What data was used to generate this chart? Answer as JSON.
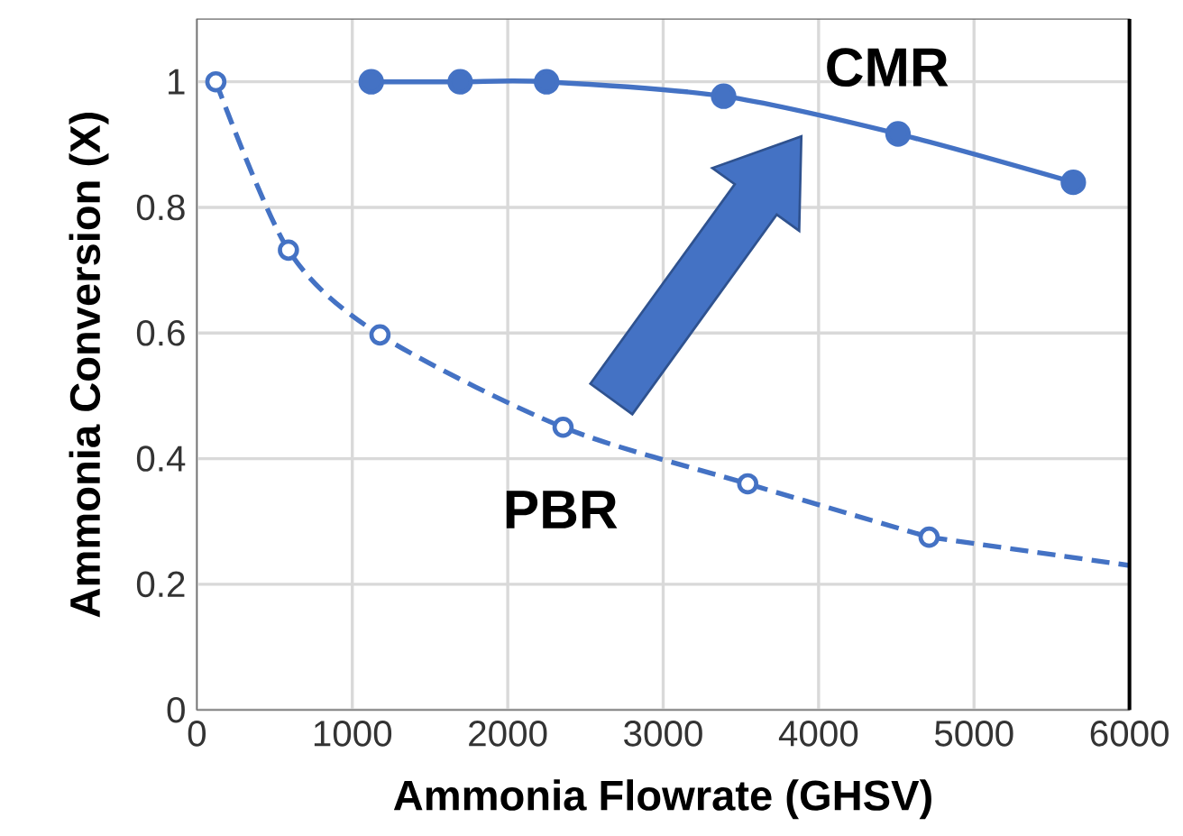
{
  "chart_data": {
    "type": "line",
    "xlabel": "Ammonia Flowrate (GHSV)",
    "ylabel": "Ammonia Conversion (X)",
    "xlim": [
      0,
      6000
    ],
    "ylim": [
      0,
      1.1
    ],
    "xticks": [
      0,
      1000,
      2000,
      3000,
      4000,
      5000,
      6000
    ],
    "yticks": [
      0,
      0.2,
      0.4,
      0.6,
      0.8,
      {
        "value": 1,
        "label": "1"
      }
    ],
    "grid": true,
    "series": [
      {
        "name": "CMR",
        "color": "#4472c4",
        "marker": "circle",
        "line_style": "solid",
        "x": [
          1122,
          1694,
          2250,
          3389,
          4511,
          5639
        ],
        "values": [
          1.0,
          1.0,
          1.0,
          0.977,
          0.917,
          0.84
        ]
      },
      {
        "name": "PBR",
        "color": "#4472c4",
        "marker": "circle",
        "line_style": "dashed",
        "x": [
          122,
          589,
          1178,
          2356,
          3544,
          4711
        ],
        "values": [
          1.0,
          0.732,
          0.597,
          0.45,
          0.36,
          0.275
        ]
      },
      {
        "color": "#4472c4",
        "marker": "none",
        "line_style": "dashed",
        "x": [
          4711,
          6000
        ],
        "values": [
          0.275,
          0.23
        ]
      }
    ]
  }
}
